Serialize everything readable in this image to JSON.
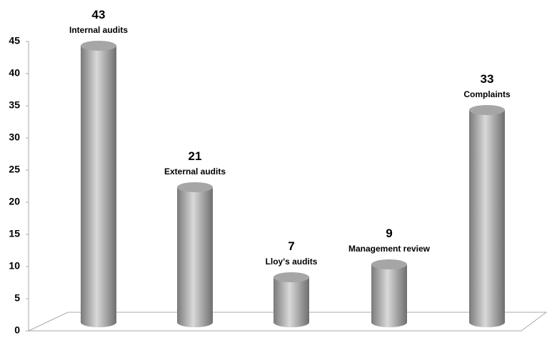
{
  "chart_data": {
    "type": "bar",
    "categories": [
      "Internal audits",
      "External audits",
      "Lloy's audits",
      "Management review",
      "Complaints"
    ],
    "values": [
      43,
      21,
      7,
      9,
      33
    ],
    "color": "#a6a6a6",
    "ylim": [
      0,
      45
    ],
    "yticks": [
      0,
      5,
      10,
      15,
      20,
      25,
      30,
      35,
      40,
      45
    ]
  }
}
